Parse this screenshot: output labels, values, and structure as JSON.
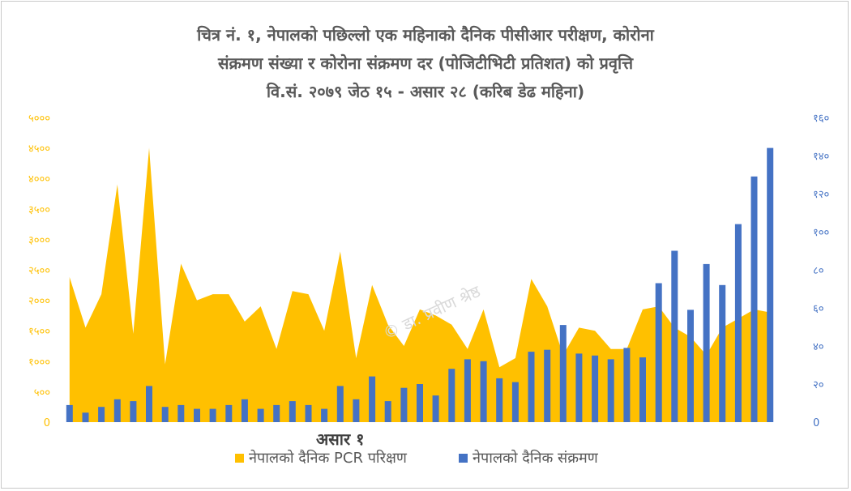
{
  "title_lines": [
    "चित्र नं. १, नेपालको पछिल्लो एक महिनाको दैनिक पीसीआर परीक्षण, कोरोना",
    "संक्रमण संख्या र कोरोना संक्रमण दर (पोजिटीभिटी प्रतिशत) को प्रवृत्ति",
    "वि.सं. २०७९ जेठ १५ - असार २८ (करिब डेढ महिना)"
  ],
  "watermark": "© डा. प्रवीण श्रेष्ठ",
  "colors": {
    "area": "#ffc000",
    "bar": "#4472c4",
    "left_axis": "#ffc000",
    "right_axis": "#4472c4",
    "title": "#595959"
  },
  "chart_data": {
    "type": "bar",
    "x_label_shown": "असार १",
    "x_label_index": 17,
    "left_axis": {
      "range": [
        0,
        5000
      ],
      "ticks": [
        0,
        500,
        1000,
        1500,
        2000,
        2500,
        3000,
        3500,
        4000,
        4500,
        5000
      ],
      "tick_labels": [
        "0",
        "५००",
        "१०००",
        "१५००",
        "२०००",
        "२५००",
        "३०००",
        "३५००",
        "४०००",
        "४५००",
        "५०००"
      ]
    },
    "right_axis": {
      "range": [
        0,
        160
      ],
      "ticks": [
        0,
        20,
        40,
        60,
        80,
        100,
        120,
        140,
        160
      ],
      "tick_labels": [
        "0",
        "२०",
        "४०",
        "६०",
        "८०",
        "१००",
        "१२०",
        "१४०",
        "१६०"
      ]
    },
    "series": [
      {
        "name": "नेपालको दैनिक PCR परिक्षण",
        "type": "area",
        "axis": "left",
        "values": [
          2380,
          1550,
          2100,
          3900,
          1450,
          4500,
          950,
          2600,
          2000,
          2100,
          2100,
          1650,
          1900,
          1200,
          2150,
          2100,
          1500,
          2800,
          1050,
          2250,
          1600,
          1250,
          1850,
          1750,
          1600,
          1200,
          1850,
          900,
          1050,
          2350,
          1900,
          1100,
          1550,
          1500,
          1200,
          1200,
          1850,
          1900,
          1550,
          1400,
          1100,
          1550,
          1700,
          1850,
          1800
        ]
      },
      {
        "name": "नेपालको दैनिक संक्रमण",
        "type": "bar",
        "axis": "right",
        "values": [
          9,
          5,
          8,
          12,
          11,
          19,
          8,
          9,
          7,
          7,
          9,
          12,
          7,
          9,
          11,
          9,
          7,
          19,
          12,
          24,
          11,
          18,
          20,
          14,
          28,
          33,
          32,
          23,
          21,
          37,
          38,
          51,
          36,
          35,
          33,
          39,
          34,
          73,
          90,
          59,
          83,
          72,
          104,
          129,
          144
        ]
      }
    ]
  }
}
